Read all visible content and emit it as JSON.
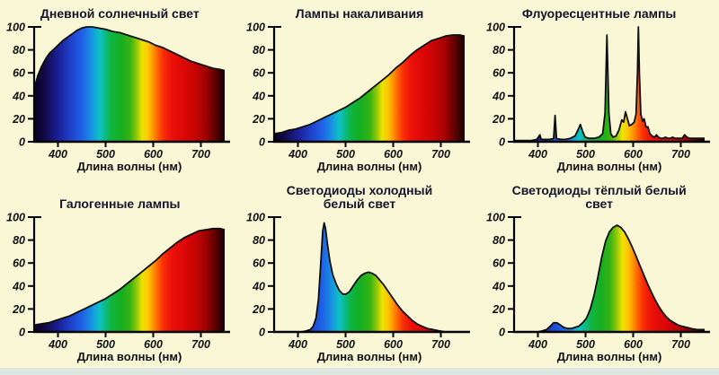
{
  "page": {
    "colors": {
      "background": "#faf7d6",
      "footer_strip": "#dce7e2",
      "axis": "#000000",
      "curve_stroke": "#0e0e0e",
      "title_color": "#14142b",
      "tick_color": "#101010"
    }
  },
  "chart_data": {
    "type": "area",
    "layout": "3-columns-2-rows",
    "xlabel": "Длина волны (нм)",
    "x_range": [
      350,
      750
    ],
    "y_range": [
      0,
      100
    ],
    "x_ticks": [
      400,
      500,
      600,
      700
    ],
    "y_ticks": [
      0,
      20,
      40,
      60,
      80,
      100
    ],
    "grid": false,
    "legend": false,
    "fill_style": "visible-light-spectrum-gradient",
    "spectrum_stops": [
      [
        350,
        "#0a001e"
      ],
      [
        372,
        "#130a48"
      ],
      [
        400,
        "#1a1f96"
      ],
      [
        428,
        "#1e42cc"
      ],
      [
        452,
        "#1f63e8"
      ],
      [
        470,
        "#1790e2"
      ],
      [
        487,
        "#0ec2c6"
      ],
      [
        500,
        "#0bba80"
      ],
      [
        513,
        "#10b43e"
      ],
      [
        533,
        "#16ae20"
      ],
      [
        552,
        "#38b312"
      ],
      [
        566,
        "#96ca07"
      ],
      [
        577,
        "#eee400"
      ],
      [
        589,
        "#fec504"
      ],
      [
        600,
        "#ff9400"
      ],
      [
        610,
        "#ff6000"
      ],
      [
        621,
        "#f92e06"
      ],
      [
        638,
        "#ec1109"
      ],
      [
        662,
        "#dd0807"
      ],
      [
        688,
        "#c60404"
      ],
      [
        710,
        "#a00202"
      ],
      [
        730,
        "#5e0000"
      ],
      [
        744,
        "#2a0000"
      ],
      [
        750,
        "#150000"
      ]
    ],
    "charts": [
      {
        "id": "daylight",
        "title": "Дневной солнечный свет",
        "points": [
          [
            350,
            46
          ],
          [
            358,
            58
          ],
          [
            366,
            66
          ],
          [
            374,
            72
          ],
          [
            382,
            77
          ],
          [
            390,
            80
          ],
          [
            400,
            84
          ],
          [
            410,
            88
          ],
          [
            420,
            91
          ],
          [
            430,
            94
          ],
          [
            440,
            97
          ],
          [
            450,
            99
          ],
          [
            460,
            100
          ],
          [
            472,
            100
          ],
          [
            485,
            99
          ],
          [
            500,
            98
          ],
          [
            515,
            96
          ],
          [
            530,
            95
          ],
          [
            545,
            93
          ],
          [
            560,
            91
          ],
          [
            575,
            89
          ],
          [
            590,
            87
          ],
          [
            605,
            84
          ],
          [
            620,
            82
          ],
          [
            635,
            79
          ],
          [
            650,
            76
          ],
          [
            665,
            73
          ],
          [
            680,
            70
          ],
          [
            695,
            68
          ],
          [
            710,
            66
          ],
          [
            725,
            64
          ],
          [
            740,
            63
          ],
          [
            750,
            62
          ]
        ]
      },
      {
        "id": "incandescent",
        "title": "Лампы накаливания",
        "points": [
          [
            350,
            7
          ],
          [
            365,
            8
          ],
          [
            380,
            10
          ],
          [
            395,
            11
          ],
          [
            410,
            13
          ],
          [
            425,
            15
          ],
          [
            440,
            18
          ],
          [
            455,
            21
          ],
          [
            470,
            24
          ],
          [
            485,
            27
          ],
          [
            500,
            30
          ],
          [
            515,
            34
          ],
          [
            530,
            38
          ],
          [
            545,
            43
          ],
          [
            560,
            48
          ],
          [
            575,
            53
          ],
          [
            590,
            58
          ],
          [
            605,
            64
          ],
          [
            620,
            69
          ],
          [
            635,
            75
          ],
          [
            650,
            80
          ],
          [
            665,
            84
          ],
          [
            680,
            88
          ],
          [
            695,
            90
          ],
          [
            710,
            92
          ],
          [
            725,
            93
          ],
          [
            740,
            93
          ],
          [
            750,
            92
          ]
        ]
      },
      {
        "id": "fluorescent",
        "title": "Флуоресцентные лампы",
        "points": [
          [
            350,
            1
          ],
          [
            370,
            1
          ],
          [
            385,
            1
          ],
          [
            398,
            2
          ],
          [
            404,
            6
          ],
          [
            407,
            2
          ],
          [
            415,
            2
          ],
          [
            425,
            2
          ],
          [
            433,
            3
          ],
          [
            436,
            23
          ],
          [
            439,
            3
          ],
          [
            448,
            2
          ],
          [
            458,
            2
          ],
          [
            468,
            3
          ],
          [
            478,
            5
          ],
          [
            484,
            10
          ],
          [
            489,
            15
          ],
          [
            494,
            9
          ],
          [
            499,
            4
          ],
          [
            508,
            3
          ],
          [
            518,
            3
          ],
          [
            528,
            4
          ],
          [
            536,
            7
          ],
          [
            541,
            25
          ],
          [
            545,
            93
          ],
          [
            549,
            25
          ],
          [
            553,
            7
          ],
          [
            558,
            4
          ],
          [
            564,
            5
          ],
          [
            570,
            10
          ],
          [
            576,
            19
          ],
          [
            580,
            17
          ],
          [
            584,
            26
          ],
          [
            588,
            20
          ],
          [
            592,
            14
          ],
          [
            597,
            15
          ],
          [
            602,
            17
          ],
          [
            606,
            24
          ],
          [
            609,
            60
          ],
          [
            611,
            100
          ],
          [
            613,
            60
          ],
          [
            616,
            24
          ],
          [
            620,
            18
          ],
          [
            623,
            20
          ],
          [
            627,
            13
          ],
          [
            631,
            13
          ],
          [
            635,
            7
          ],
          [
            640,
            5
          ],
          [
            645,
            4
          ],
          [
            649,
            6
          ],
          [
            653,
            4
          ],
          [
            658,
            3
          ],
          [
            663,
            3
          ],
          [
            668,
            4
          ],
          [
            673,
            3
          ],
          [
            678,
            3
          ],
          [
            683,
            4
          ],
          [
            688,
            3
          ],
          [
            693,
            3
          ],
          [
            698,
            3
          ],
          [
            703,
            3
          ],
          [
            708,
            6
          ],
          [
            713,
            4
          ],
          [
            718,
            3
          ],
          [
            724,
            3
          ],
          [
            730,
            3
          ],
          [
            737,
            3
          ],
          [
            744,
            3
          ],
          [
            750,
            3
          ]
        ]
      },
      {
        "id": "halogen",
        "title": "Галогенные лампы",
        "points": [
          [
            350,
            6
          ],
          [
            365,
            7
          ],
          [
            380,
            8
          ],
          [
            395,
            10
          ],
          [
            410,
            12
          ],
          [
            425,
            14
          ],
          [
            440,
            17
          ],
          [
            455,
            20
          ],
          [
            470,
            23
          ],
          [
            485,
            26
          ],
          [
            500,
            29
          ],
          [
            515,
            33
          ],
          [
            530,
            37
          ],
          [
            545,
            42
          ],
          [
            560,
            47
          ],
          [
            575,
            52
          ],
          [
            590,
            57
          ],
          [
            605,
            62
          ],
          [
            620,
            68
          ],
          [
            635,
            73
          ],
          [
            650,
            78
          ],
          [
            665,
            82
          ],
          [
            680,
            85
          ],
          [
            695,
            88
          ],
          [
            710,
            89
          ],
          [
            725,
            90
          ],
          [
            740,
            90
          ],
          [
            750,
            89
          ]
        ]
      },
      {
        "id": "led-cool-white",
        "title": "Светодиоды холодный белый свет",
        "points": [
          [
            350,
            0
          ],
          [
            395,
            0
          ],
          [
            408,
            0
          ],
          [
            418,
            1
          ],
          [
            426,
            2
          ],
          [
            432,
            5
          ],
          [
            438,
            12
          ],
          [
            443,
            28
          ],
          [
            448,
            60
          ],
          [
            452,
            88
          ],
          [
            455,
            95
          ],
          [
            458,
            90
          ],
          [
            462,
            76
          ],
          [
            467,
            62
          ],
          [
            473,
            50
          ],
          [
            480,
            42
          ],
          [
            487,
            36
          ],
          [
            494,
            33
          ],
          [
            501,
            33
          ],
          [
            508,
            35
          ],
          [
            516,
            40
          ],
          [
            524,
            45
          ],
          [
            532,
            49
          ],
          [
            540,
            51
          ],
          [
            548,
            52
          ],
          [
            556,
            51
          ],
          [
            564,
            49
          ],
          [
            572,
            45
          ],
          [
            580,
            41
          ],
          [
            590,
            35
          ],
          [
            600,
            29
          ],
          [
            610,
            23
          ],
          [
            620,
            18
          ],
          [
            630,
            14
          ],
          [
            640,
            10
          ],
          [
            650,
            7
          ],
          [
            660,
            5
          ],
          [
            672,
            3
          ],
          [
            684,
            2
          ],
          [
            696,
            1
          ],
          [
            710,
            0
          ],
          [
            750,
            0
          ]
        ]
      },
      {
        "id": "led-warm-white",
        "title": "Светодиоды тёплый белый свет",
        "points": [
          [
            350,
            0
          ],
          [
            400,
            0
          ],
          [
            410,
            1
          ],
          [
            418,
            2
          ],
          [
            426,
            5
          ],
          [
            433,
            8
          ],
          [
            440,
            8
          ],
          [
            447,
            6
          ],
          [
            454,
            4
          ],
          [
            462,
            3
          ],
          [
            470,
            3
          ],
          [
            478,
            4
          ],
          [
            486,
            5
          ],
          [
            494,
            8
          ],
          [
            502,
            12
          ],
          [
            510,
            20
          ],
          [
            518,
            32
          ],
          [
            526,
            48
          ],
          [
            534,
            65
          ],
          [
            542,
            79
          ],
          [
            550,
            87
          ],
          [
            558,
            91
          ],
          [
            566,
            93
          ],
          [
            574,
            91
          ],
          [
            582,
            87
          ],
          [
            590,
            81
          ],
          [
            598,
            74
          ],
          [
            606,
            66
          ],
          [
            614,
            58
          ],
          [
            622,
            50
          ],
          [
            630,
            42
          ],
          [
            638,
            35
          ],
          [
            646,
            28
          ],
          [
            654,
            22
          ],
          [
            662,
            17
          ],
          [
            670,
            13
          ],
          [
            678,
            10
          ],
          [
            686,
            8
          ],
          [
            694,
            6
          ],
          [
            702,
            5
          ],
          [
            712,
            4
          ],
          [
            722,
            3
          ],
          [
            734,
            2
          ],
          [
            750,
            2
          ]
        ]
      }
    ]
  }
}
